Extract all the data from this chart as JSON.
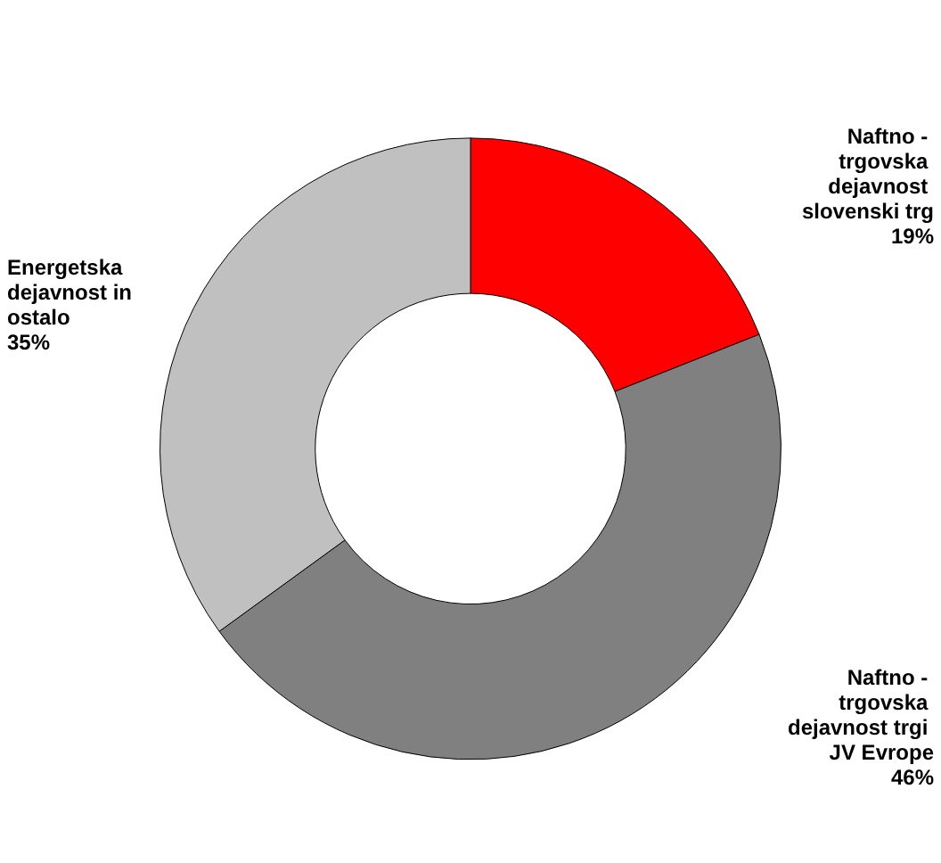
{
  "chart_data": {
    "type": "donut",
    "categories": [
      "Naftno - trgovska dejavnost slovenski trg",
      "Naftno - trgovska dejavnost trgi JV Evrope",
      "Energetska dejavnost in ostalo"
    ],
    "values": [
      19,
      46,
      35
    ],
    "colors": [
      "#ff0000",
      "#808080",
      "#c0c0c0"
    ],
    "value_labels": [
      "19%",
      "46%",
      "35%"
    ]
  }
}
